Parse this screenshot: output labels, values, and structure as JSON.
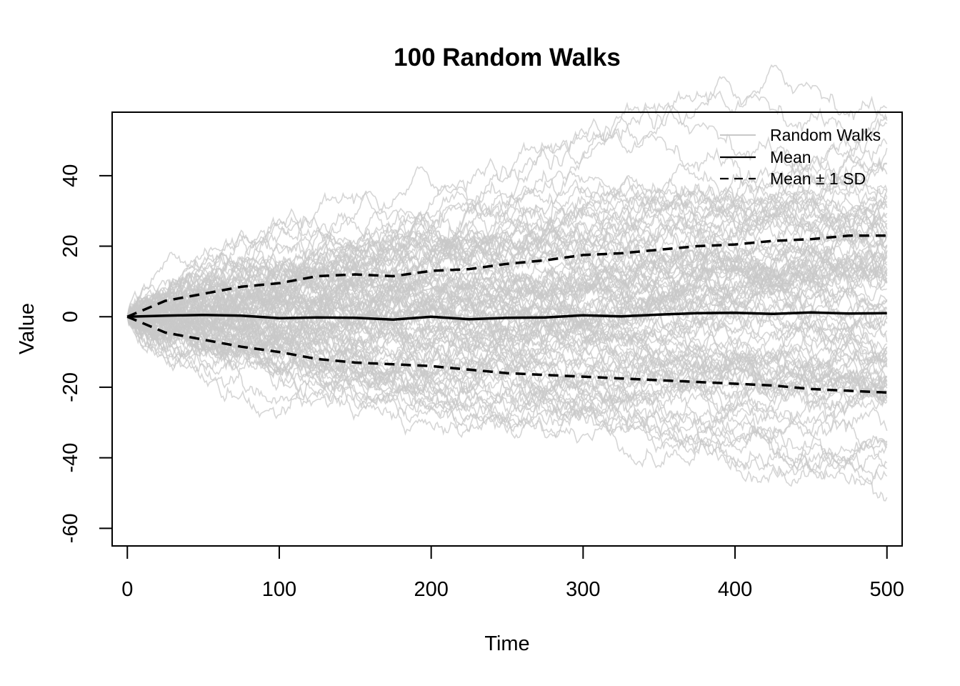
{
  "chart_data": {
    "type": "line",
    "title": "100 Random Walks",
    "xlabel": "Time",
    "ylabel": "Value",
    "xlim": [
      -10,
      510
    ],
    "ylim": [
      -65,
      58
    ],
    "x_ticks": [
      0,
      100,
      200,
      300,
      400,
      500
    ],
    "y_ticks": [
      -60,
      -40,
      -20,
      0,
      20,
      40
    ],
    "x_tick_labels": [
      "0",
      "100",
      "200",
      "300",
      "400",
      "500"
    ],
    "y_tick_labels": [
      "-60",
      "-40",
      "-20",
      "0",
      "20",
      "40"
    ],
    "grid": false,
    "legend_position": "top-right",
    "legend": [
      {
        "label": "Random Walks",
        "style": "solid",
        "color": "#c8c8c8"
      },
      {
        "label": "Mean",
        "style": "solid",
        "color": "#000000"
      },
      {
        "label": "Mean ± 1 SD",
        "style": "dashed",
        "color": "#000000"
      }
    ],
    "walks": {
      "count": 100,
      "steps": 500,
      "start_value": 0,
      "color": "#c8c8c8"
    },
    "series": [
      {
        "name": "Mean",
        "x": [
          0,
          25,
          50,
          75,
          100,
          125,
          150,
          175,
          200,
          225,
          250,
          275,
          300,
          325,
          350,
          375,
          400,
          425,
          450,
          475,
          500
        ],
        "values": [
          0,
          0.3,
          0.5,
          0.3,
          -0.4,
          -0.2,
          -0.3,
          -0.8,
          0.0,
          -0.7,
          -0.3,
          -0.2,
          0.4,
          0.1,
          0.6,
          1.0,
          1.1,
          0.8,
          1.2,
          0.9,
          1.0
        ]
      },
      {
        "name": "Mean + 1 SD",
        "x": [
          0,
          25,
          50,
          75,
          100,
          125,
          150,
          175,
          200,
          225,
          250,
          275,
          300,
          325,
          350,
          375,
          400,
          425,
          450,
          475,
          500
        ],
        "values": [
          0,
          4.5,
          6.5,
          8.5,
          9.5,
          11.5,
          12.0,
          11.5,
          13.0,
          13.5,
          15.0,
          16.0,
          17.5,
          18.0,
          19.0,
          20.0,
          20.5,
          21.5,
          22.0,
          23.0,
          23.0
        ]
      },
      {
        "name": "Mean - 1 SD",
        "x": [
          0,
          25,
          50,
          75,
          100,
          125,
          150,
          175,
          200,
          225,
          250,
          275,
          300,
          325,
          350,
          375,
          400,
          425,
          450,
          475,
          500
        ],
        "values": [
          0,
          -4.5,
          -6.5,
          -8.5,
          -10.0,
          -12.0,
          -13.0,
          -13.5,
          -14.0,
          -15.0,
          -16.0,
          -16.5,
          -17.0,
          -17.5,
          -18.0,
          -18.5,
          -19.0,
          -19.5,
          -20.5,
          -21.0,
          -21.5
        ]
      }
    ]
  }
}
